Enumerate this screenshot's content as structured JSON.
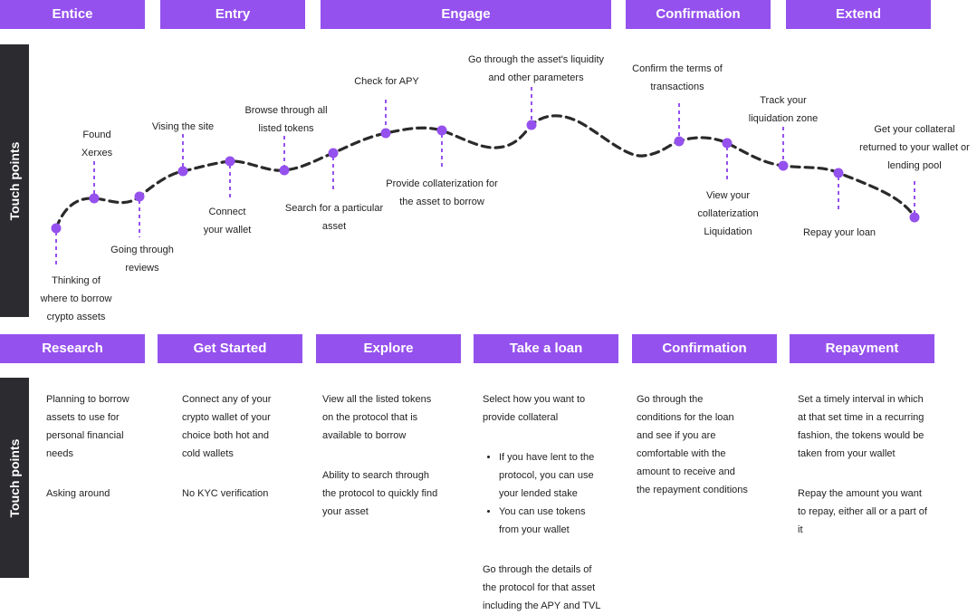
{
  "top_phases": [
    "Entice",
    "Entry",
    "Engage",
    "Confirmation",
    "Extend"
  ],
  "side_label": "Touch points",
  "journey_points": [
    {
      "id": "thinking",
      "label": [
        "Thinking of",
        "where to borrow",
        "crypto assets"
      ]
    },
    {
      "id": "found-xerxes",
      "label": [
        "Found",
        "Xerxes"
      ]
    },
    {
      "id": "going-through-reviews",
      "label": [
        "Going through",
        "reviews"
      ]
    },
    {
      "id": "visiting-site",
      "label": [
        "Vising the site"
      ]
    },
    {
      "id": "connect-wallet",
      "label": [
        "Connect",
        "your wallet"
      ]
    },
    {
      "id": "browse-tokens",
      "label": [
        "Browse through all",
        "listed tokens"
      ]
    },
    {
      "id": "search-asset",
      "label": [
        "Search for a particular",
        "asset"
      ]
    },
    {
      "id": "check-apy",
      "label": [
        "Check for APY"
      ]
    },
    {
      "id": "provide-collateral",
      "label": [
        "Provide collaterization for",
        "the asset to borrow"
      ]
    },
    {
      "id": "liquidity",
      "label": [
        "Go through the asset's liquidity",
        "and other parameters"
      ]
    },
    {
      "id": "confirm-terms",
      "label": [
        "Confirm the terms of",
        "transactions"
      ]
    },
    {
      "id": "view-collateral",
      "label": [
        "View your",
        "collaterization",
        "Liquidation"
      ]
    },
    {
      "id": "liquidation-zone",
      "label": [
        "Track your",
        "liquidation zone"
      ]
    },
    {
      "id": "repay-loan",
      "label": [
        "Repay your loan"
      ]
    },
    {
      "id": "get-collateral",
      "label": [
        "Get your collateral",
        "returned to your wallet or",
        "lending pool"
      ]
    }
  ],
  "bottom_phases": [
    {
      "title": "Research",
      "blocks": [
        {
          "type": "p",
          "text": [
            "Planning to borrow",
            "assets to use for",
            "personal financial",
            "needs"
          ]
        },
        {
          "type": "p",
          "text": [
            "Asking around"
          ]
        }
      ]
    },
    {
      "title": "Get Started",
      "blocks": [
        {
          "type": "p",
          "text": [
            "Connect any of your",
            "crypto wallet of your",
            "choice both hot and",
            "cold wallets"
          ]
        },
        {
          "type": "p",
          "text": [
            "No KYC verification"
          ]
        }
      ]
    },
    {
      "title": "Explore",
      "blocks": [
        {
          "type": "p",
          "text": [
            "View all the listed tokens",
            "on the protocol that is",
            "available to borrow"
          ]
        },
        {
          "type": "p",
          "text": [
            "Ability to search through",
            "the protocol to quickly find",
            "your asset"
          ]
        }
      ]
    },
    {
      "title": "Take a loan",
      "blocks": [
        {
          "type": "p",
          "text": [
            "Select how you want to",
            "provide collateral"
          ]
        },
        {
          "type": "ul",
          "items": [
            [
              "If you have lent to the",
              "protocol, you can use",
              "your lended stake"
            ],
            [
              "You can use tokens",
              "from your wallet"
            ]
          ]
        },
        {
          "type": "p",
          "text": [
            "Go through the details of",
            "the protocol for that asset",
            "including the APY and TVL"
          ]
        }
      ]
    },
    {
      "title": "Confirmation",
      "blocks": [
        {
          "type": "p",
          "text": [
            "Go through the",
            "conditions for the loan",
            "and see if you are",
            "comfortable with the",
            "amount to receive and",
            "the repayment conditions"
          ]
        }
      ]
    },
    {
      "title": "Repayment",
      "blocks": [
        {
          "type": "p",
          "text": [
            "Set a timely interval in which",
            "at that set time in a recurring",
            "fashion, the tokens would be",
            "taken from your wallet"
          ]
        },
        {
          "type": "p",
          "text": [
            "Repay the amount you want",
            "to repay, either all or a part of",
            "it"
          ]
        }
      ]
    }
  ],
  "colors": {
    "accent": "#9551ee",
    "dark": "#2c2c30",
    "curve": "#2a2a2a",
    "dot": "#9551ee"
  }
}
